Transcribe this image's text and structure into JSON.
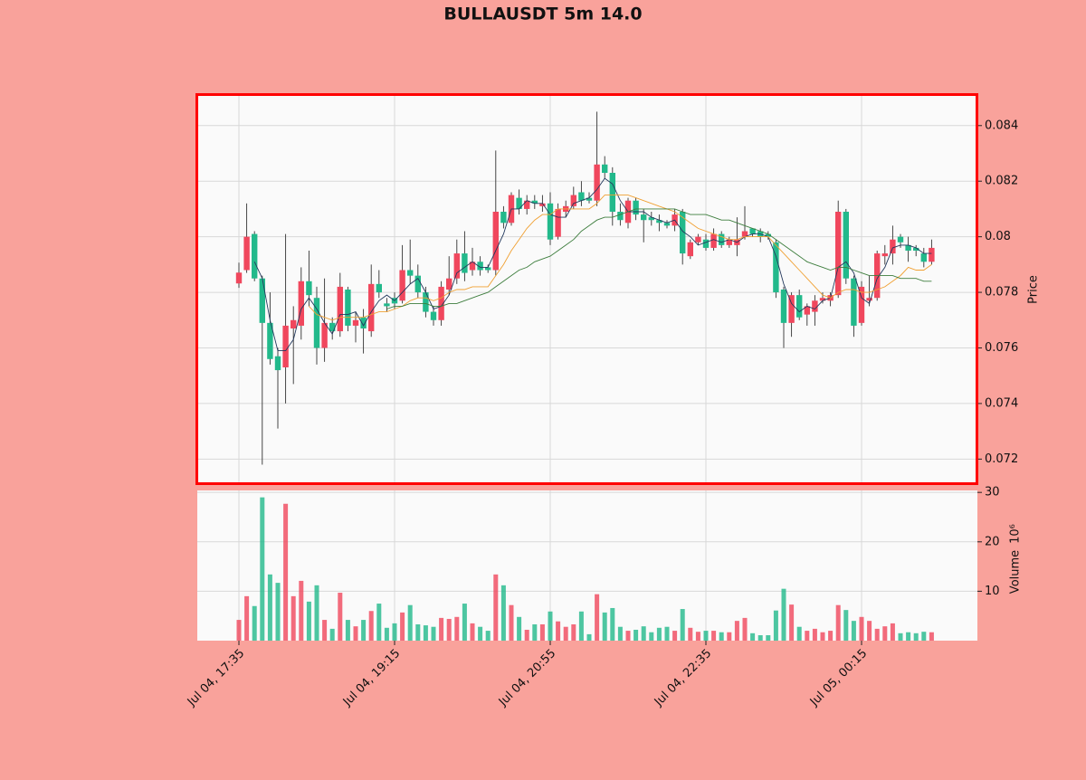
{
  "chart_data": {
    "type": "candlestick",
    "title": "BULLAUSDT 5m 14.0",
    "categories": [
      "Jul 04, 17:35",
      null,
      null,
      null,
      null,
      null,
      null,
      null,
      null,
      null,
      null,
      null,
      null,
      null,
      null,
      null,
      null,
      null,
      null,
      null,
      "Jul 04, 19:15",
      null,
      null,
      null,
      null,
      null,
      null,
      null,
      null,
      null,
      null,
      null,
      null,
      null,
      null,
      null,
      null,
      null,
      null,
      null,
      "Jul 04, 20:55",
      null,
      null,
      null,
      null,
      null,
      null,
      null,
      null,
      null,
      null,
      null,
      null,
      null,
      null,
      null,
      null,
      null,
      null,
      null,
      "Jul 04, 22:35",
      null,
      null,
      null,
      null,
      null,
      null,
      null,
      null,
      null,
      null,
      null,
      null,
      null,
      null,
      null,
      null,
      null,
      null,
      null,
      "Jul 05, 00:15",
      null,
      null,
      null,
      null,
      null,
      null,
      null,
      null,
      null
    ],
    "open": [
      0.07832,
      0.0788,
      0.0801,
      0.0785,
      0.0769,
      0.0757,
      0.0753,
      0.0767,
      0.0768,
      0.0784,
      0.0778,
      0.076,
      0.0769,
      0.0766,
      0.0781,
      0.0768,
      0.0771,
      0.0766,
      0.0783,
      0.0776,
      0.0778,
      0.0777,
      0.0788,
      0.0786,
      0.078,
      0.0773,
      0.077,
      0.0781,
      0.0785,
      0.0794,
      0.0788,
      0.0791,
      0.0789,
      0.0788,
      0.0809,
      0.0805,
      0.0814,
      0.081,
      0.0813,
      0.0811,
      0.0812,
      0.08,
      0.0809,
      0.0811,
      0.0816,
      0.0814,
      0.0813,
      0.0826,
      0.0823,
      0.0809,
      0.0805,
      0.0813,
      0.0808,
      0.0807,
      0.0806,
      0.0805,
      0.0804,
      0.0809,
      0.0793,
      0.0798,
      0.0799,
      0.0796,
      0.0801,
      0.0797,
      0.0797,
      0.08,
      0.0803,
      0.0802,
      0.0801,
      0.0798,
      0.0781,
      0.0769,
      0.0779,
      0.0772,
      0.0773,
      0.0777,
      0.0777,
      0.0779,
      0.0809,
      0.0785,
      0.0769,
      0.0777,
      0.0778,
      0.0793,
      0.0794,
      0.08,
      0.0797,
      0.0796,
      0.0794,
      0.0791
    ],
    "high": [
      0.07907,
      0.0812,
      0.0802,
      0.0786,
      0.078,
      0.076,
      0.0801,
      0.0775,
      0.0789,
      0.0795,
      0.0782,
      0.0785,
      0.0771,
      0.0787,
      0.0782,
      0.0773,
      0.0774,
      0.079,
      0.0788,
      0.0778,
      0.078,
      0.0797,
      0.0799,
      0.079,
      0.0782,
      0.0775,
      0.0784,
      0.0793,
      0.0799,
      0.0802,
      0.0796,
      0.0793,
      0.079,
      0.0831,
      0.0811,
      0.0816,
      0.0817,
      0.0815,
      0.0815,
      0.0815,
      0.0816,
      0.0812,
      0.0813,
      0.0818,
      0.082,
      0.0816,
      0.0845,
      0.0829,
      0.0825,
      0.0812,
      0.0814,
      0.0814,
      0.081,
      0.0809,
      0.0808,
      0.0806,
      0.081,
      0.081,
      0.0799,
      0.0801,
      0.0801,
      0.0803,
      0.0802,
      0.08,
      0.0807,
      0.0811,
      0.0803,
      0.0803,
      0.0802,
      0.0799,
      0.0782,
      0.078,
      0.0781,
      0.0776,
      0.0779,
      0.078,
      0.078,
      0.0813,
      0.081,
      0.0786,
      0.0784,
      0.0786,
      0.0795,
      0.0797,
      0.0804,
      0.0801,
      0.08,
      0.0797,
      0.0796,
      0.0799
    ],
    "low": [
      0.07816,
      0.0787,
      0.0784,
      0.0718,
      0.0754,
      0.0731,
      0.074,
      0.0747,
      0.0763,
      0.0775,
      0.0754,
      0.0755,
      0.0763,
      0.0764,
      0.0766,
      0.0762,
      0.0758,
      0.0764,
      0.0778,
      0.0773,
      0.0774,
      0.0776,
      0.0783,
      0.0778,
      0.0771,
      0.0768,
      0.0768,
      0.0779,
      0.0783,
      0.0784,
      0.0786,
      0.0786,
      0.0787,
      0.0786,
      0.0803,
      0.0804,
      0.0808,
      0.0808,
      0.081,
      0.0809,
      0.0797,
      0.0799,
      0.0807,
      0.081,
      0.0811,
      0.0812,
      0.0811,
      0.0821,
      0.0804,
      0.0804,
      0.0803,
      0.0806,
      0.0798,
      0.0804,
      0.0802,
      0.0803,
      0.0802,
      0.079,
      0.0792,
      0.0797,
      0.0795,
      0.0795,
      0.0796,
      0.0796,
      0.0793,
      0.0799,
      0.08,
      0.0798,
      0.0799,
      0.0778,
      0.076,
      0.0764,
      0.077,
      0.0768,
      0.0768,
      0.0776,
      0.0775,
      0.0778,
      0.0783,
      0.0764,
      0.0768,
      0.0775,
      0.0777,
      0.079,
      0.079,
      0.0796,
      0.0791,
      0.0793,
      0.0789,
      0.079
    ],
    "close": [
      0.07871,
      0.08,
      0.0785,
      0.0769,
      0.0756,
      0.0752,
      0.0768,
      0.077,
      0.0784,
      0.0779,
      0.076,
      0.0769,
      0.0766,
      0.0782,
      0.0768,
      0.077,
      0.0767,
      0.0783,
      0.078,
      0.0775,
      0.0776,
      0.0788,
      0.0786,
      0.078,
      0.0773,
      0.077,
      0.0782,
      0.0785,
      0.0794,
      0.0787,
      0.0791,
      0.0788,
      0.0788,
      0.0809,
      0.0805,
      0.0815,
      0.081,
      0.0813,
      0.0812,
      0.0812,
      0.0799,
      0.081,
      0.0811,
      0.0815,
      0.0813,
      0.0813,
      0.0826,
      0.0823,
      0.0809,
      0.0806,
      0.0813,
      0.0808,
      0.0806,
      0.0806,
      0.0805,
      0.0804,
      0.0808,
      0.0794,
      0.0798,
      0.08,
      0.0796,
      0.0801,
      0.0797,
      0.0799,
      0.0799,
      0.0802,
      0.0801,
      0.08,
      0.08,
      0.078,
      0.0769,
      0.0779,
      0.0771,
      0.0775,
      0.0777,
      0.0778,
      0.0779,
      0.0809,
      0.0785,
      0.0768,
      0.0782,
      0.0778,
      0.0794,
      0.0794,
      0.0799,
      0.0798,
      0.0795,
      0.0795,
      0.0791,
      0.0796
    ],
    "volume": [
      4.2,
      9,
      7,
      29,
      13.4,
      11.7,
      27.7,
      9,
      12.1,
      7.9,
      11.2,
      4.2,
      2.4,
      9.7,
      4.2,
      2.9,
      4.2,
      6,
      7.5,
      2.6,
      3.5,
      5.7,
      7.2,
      3.3,
      3.1,
      2.8,
      4.6,
      4.4,
      4.8,
      7.5,
      3.5,
      2.8,
      2,
      13.4,
      11.2,
      7.2,
      4.8,
      2.2,
      3.3,
      3.3,
      5.9,
      3.9,
      2.8,
      3.3,
      5.9,
      1.3,
      9.4,
      5.7,
      6.6,
      2.8,
      2,
      2.2,
      2.9,
      1.7,
      2.6,
      2.8,
      2,
      6.4,
      2.6,
      1.8,
      2,
      2,
      1.7,
      1.7,
      4,
      4.6,
      1.5,
      1.1,
      1.1,
      6.1,
      10.5,
      7.3,
      2.8,
      2,
      2.4,
      1.7,
      2,
      7.2,
      6.2,
      4,
      4.8,
      4,
      2.4,
      2.9,
      3.5,
      1.5,
      1.7,
      1.5,
      1.8,
      1.7
    ],
    "moving_averages": [
      {
        "color": "#23395d",
        "values": [
          null,
          null,
          0.0791,
          0.0785,
          0.077,
          0.0759,
          0.0759,
          0.0763,
          0.0774,
          0.0778,
          0.0774,
          0.0769,
          0.0765,
          0.0772,
          0.0772,
          0.0773,
          0.0768,
          0.0773,
          0.0777,
          0.0779,
          0.0777,
          0.078,
          0.0783,
          0.0785,
          0.078,
          0.0774,
          0.0775,
          0.0779,
          0.0787,
          0.0789,
          0.0791,
          0.0789,
          0.0789,
          0.0795,
          0.0801,
          0.081,
          0.081,
          0.0813,
          0.0812,
          0.0812,
          0.0808,
          0.0807,
          0.0807,
          0.0812,
          0.0813,
          0.0814,
          0.0817,
          0.0821,
          0.0819,
          0.0813,
          0.0809,
          0.0809,
          0.0809,
          0.0807,
          0.0806,
          0.0805,
          0.0806,
          0.0802,
          0.08,
          0.0797,
          0.0798,
          0.0799,
          0.0798,
          0.0799,
          0.0798,
          0.08,
          0.0801,
          0.0801,
          0.08,
          0.0793,
          0.0783,
          0.0776,
          0.0773,
          0.0775,
          0.0774,
          0.0777,
          0.0778,
          0.0789,
          0.0791,
          0.0787,
          0.0778,
          0.0776,
          0.0785,
          0.0789,
          0.0796,
          0.0797,
          0.0797,
          0.0796,
          0.0794,
          0.0794
        ]
      },
      {
        "color": "#f0a032",
        "values": [
          null,
          null,
          null,
          null,
          null,
          null,
          null,
          null,
          null,
          0.0775,
          0.0772,
          0.0771,
          0.077,
          0.0771,
          0.0771,
          0.0771,
          0.0771,
          0.0772,
          0.0773,
          0.0773,
          0.0774,
          0.0775,
          0.0777,
          0.0778,
          0.0778,
          0.0777,
          0.0778,
          0.078,
          0.0781,
          0.0781,
          0.0782,
          0.0782,
          0.0782,
          0.0786,
          0.079,
          0.0795,
          0.0799,
          0.0803,
          0.0806,
          0.0808,
          0.0808,
          0.081,
          0.081,
          0.081,
          0.081,
          0.081,
          0.0812,
          0.0815,
          0.0815,
          0.0815,
          0.0815,
          0.0814,
          0.0813,
          0.0812,
          0.0811,
          0.081,
          0.0809,
          0.0807,
          0.0805,
          0.0803,
          0.0802,
          0.0801,
          0.08,
          0.0799,
          0.0799,
          0.08,
          0.08,
          0.08,
          0.08,
          0.0797,
          0.0794,
          0.0791,
          0.0788,
          0.0785,
          0.0782,
          0.0779,
          0.0778,
          0.078,
          0.0781,
          0.0781,
          0.078,
          0.078,
          0.0781,
          0.0782,
          0.0784,
          0.0786,
          0.0789,
          0.0788,
          0.0788,
          0.079
        ]
      },
      {
        "color": "#3d7d3d",
        "values": [
          null,
          null,
          null,
          null,
          null,
          null,
          null,
          null,
          null,
          null,
          null,
          null,
          null,
          null,
          null,
          null,
          null,
          null,
          null,
          0.0774,
          0.0775,
          0.0775,
          0.0776,
          0.0776,
          0.0776,
          0.0775,
          0.0775,
          0.0776,
          0.0776,
          0.0777,
          0.0778,
          0.0779,
          0.078,
          0.0782,
          0.0784,
          0.0786,
          0.0788,
          0.0789,
          0.0791,
          0.0792,
          0.0793,
          0.0795,
          0.0797,
          0.0799,
          0.0802,
          0.0804,
          0.0806,
          0.0807,
          0.0807,
          0.0808,
          0.0809,
          0.081,
          0.081,
          0.081,
          0.081,
          0.081,
          0.081,
          0.0809,
          0.0808,
          0.0808,
          0.0808,
          0.0807,
          0.0806,
          0.0806,
          0.0805,
          0.0804,
          0.0803,
          0.0802,
          0.0801,
          0.0799,
          0.0797,
          0.0795,
          0.0793,
          0.0791,
          0.079,
          0.0789,
          0.0788,
          0.0789,
          0.0789,
          0.0788,
          0.0787,
          0.0786,
          0.0786,
          0.0786,
          0.0786,
          0.0785,
          0.0785,
          0.0785,
          0.0784,
          0.0784
        ]
      }
    ],
    "up_color": "#f0475d",
    "down_color": "#22b98b",
    "ylabel": "Price",
    "ylim": [
      0.0711,
      0.0851
    ],
    "yticks": [
      0.072,
      0.074,
      0.076,
      0.078,
      0.08,
      0.082,
      0.084
    ],
    "volume_ylabel": "Volume",
    "volume_offset": "10⁶",
    "volume_ylim": [
      0,
      30.4
    ],
    "volume_yticks": [
      10,
      20,
      30
    ],
    "grid": true
  }
}
